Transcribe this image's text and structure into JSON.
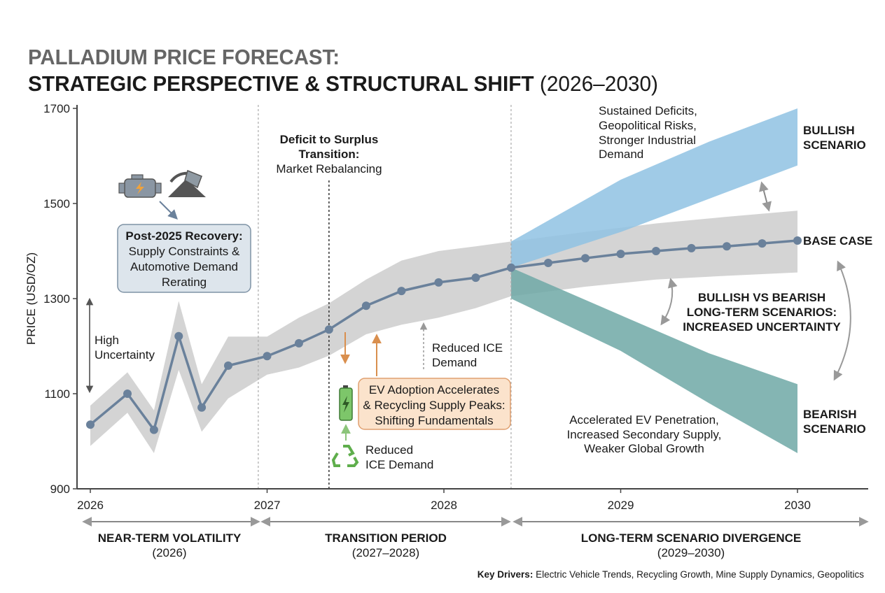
{
  "title": {
    "line1": "PALLADIUM PRICE FORECAST:",
    "line2_bold": "STRATEGIC PERSPECTIVE & STRUCTURAL SHIFT",
    "line2_normal": " (2026–2030)"
  },
  "chart_data": {
    "type": "line",
    "title": "PALLADIUM PRICE FORECAST: STRATEGIC PERSPECTIVE & STRUCTURAL SHIFT (2026–2030)",
    "xlabel": "",
    "ylabel": "PRICE (USD/OZ)",
    "xlim": [
      2026,
      2030.4
    ],
    "ylim": [
      900,
      1700
    ],
    "x_ticks": [
      "2026",
      "2027",
      "2028",
      "2029",
      "2030"
    ],
    "y_ticks": [
      "900",
      "1100",
      "1300",
      "1500",
      "1700"
    ],
    "grid": false,
    "series": [
      {
        "name": "BASE CASE",
        "color": "#6a819b",
        "x": [
          2026.0,
          2026.21,
          2026.36,
          2026.5,
          2026.63,
          2026.78,
          2027.0,
          2027.18,
          2027.35,
          2027.56,
          2027.76,
          2027.97,
          2028.18,
          2028.38,
          2028.59,
          2028.8,
          2029.0,
          2029.2,
          2029.4,
          2029.6,
          2029.8,
          2030.0
        ],
        "y": [
          1035,
          1100,
          1024,
          1221,
          1071,
          1159,
          1179,
          1206,
          1235,
          1285,
          1316,
          1334,
          1344,
          1365,
          1375,
          1385,
          1394,
          1400,
          1406,
          1410,
          1416,
          1422
        ]
      }
    ],
    "bands": [
      {
        "name": "base-band",
        "color": "#d2d2d2",
        "x": [
          2026.0,
          2026.21,
          2026.36,
          2026.5,
          2026.63,
          2026.78,
          2027.0,
          2027.18,
          2027.35,
          2027.56,
          2027.76,
          2027.97,
          2028.18,
          2028.38,
          2028.8,
          2029.2,
          2029.6,
          2030.0
        ],
        "upper": [
          1075,
          1145,
          1065,
          1295,
          1120,
          1220,
          1220,
          1260,
          1290,
          1340,
          1380,
          1400,
          1410,
          1420,
          1440,
          1458,
          1472,
          1485
        ],
        "lower": [
          990,
          1060,
          975,
          1150,
          1020,
          1090,
          1140,
          1155,
          1180,
          1225,
          1245,
          1260,
          1280,
          1305,
          1325,
          1340,
          1348,
          1355
        ]
      },
      {
        "name": "BULLISH SCENARIO",
        "color": "#8fc2e3",
        "x": [
          2028.38,
          2029.0,
          2029.5,
          2030.0
        ],
        "upper": [
          1420,
          1550,
          1630,
          1700
        ],
        "lower": [
          1365,
          1440,
          1510,
          1580
        ]
      },
      {
        "name": "BEARISH SCENARIO",
        "color": "#6fa8a6",
        "x": [
          2028.38,
          2029.0,
          2029.5,
          2030.0
        ],
        "upper": [
          1365,
          1265,
          1185,
          1120
        ],
        "lower": [
          1300,
          1190,
          1080,
          975
        ]
      }
    ],
    "phase_dividers": [
      2026.95,
      2027.35,
      2028.38
    ],
    "scenario_labels": {
      "bullish": [
        "BULLISH",
        "SCENARIO"
      ],
      "base": "BASE CASE",
      "bearish": [
        "BEARISH",
        "SCENARIO"
      ]
    }
  },
  "annotations": {
    "deficit": {
      "bold1": "Deficit to Surplus",
      "bold2": "Transition:",
      "normal": "Market Rebalancing"
    },
    "recovery": {
      "bold": "Post-2025 Recovery:",
      "lines": [
        "Supply Constraints &",
        "Automotive Demand",
        "Rerating"
      ]
    },
    "high_uncertainty": [
      "High",
      "Uncertainty"
    ],
    "reduced_ice_upper": [
      "Reduced ICE",
      "Demand"
    ],
    "ev_box": [
      "EV Adoption Accelerates",
      "& Recycling Supply Peaks:",
      "Shifting Fundamentals"
    ],
    "reduced_ice_lower": [
      "Reduced",
      "ICE Demand"
    ],
    "bullish_drivers": [
      "Sustained Deficits,",
      "Geopolitical Risks,",
      "Stronger Industrial",
      "Demand"
    ],
    "uncertainty": [
      "BULLISH VS BEARISH",
      "LONG-TERM SCENARIOS:",
      "INCREASED UNCERTAINTY"
    ],
    "bearish_drivers": [
      "Accelerated EV Penetration,",
      "Increased Secondary Supply,",
      "Weaker Global Growth"
    ]
  },
  "periods": [
    {
      "label": "NEAR-TERM VOLATILITY",
      "range": "(2026)"
    },
    {
      "label": "TRANSITION PERIOD",
      "range": "(2027–2028)"
    },
    {
      "label": "LONG-TERM SCENARIO DIVERGENCE",
      "range": "(2029–2030)"
    }
  ],
  "footer": {
    "key_label": "Key Drivers:",
    "key_text": " Electric Vehicle Trends, Recycling Growth, Mine Supply Dynamics, Geopolitics"
  },
  "icons": [
    "engine-icon",
    "mine-icon",
    "battery-icon",
    "recycle-icon"
  ],
  "colors": {
    "base_line": "#6a819b",
    "band": "#d2d2d2",
    "bullish": "#8fc2e3",
    "bearish": "#6fa8a6",
    "recovery_box": "#dde5ec",
    "ev_box": "#fbe3cc",
    "orange_arrow": "#d98f4e",
    "green": "#6db35a"
  }
}
